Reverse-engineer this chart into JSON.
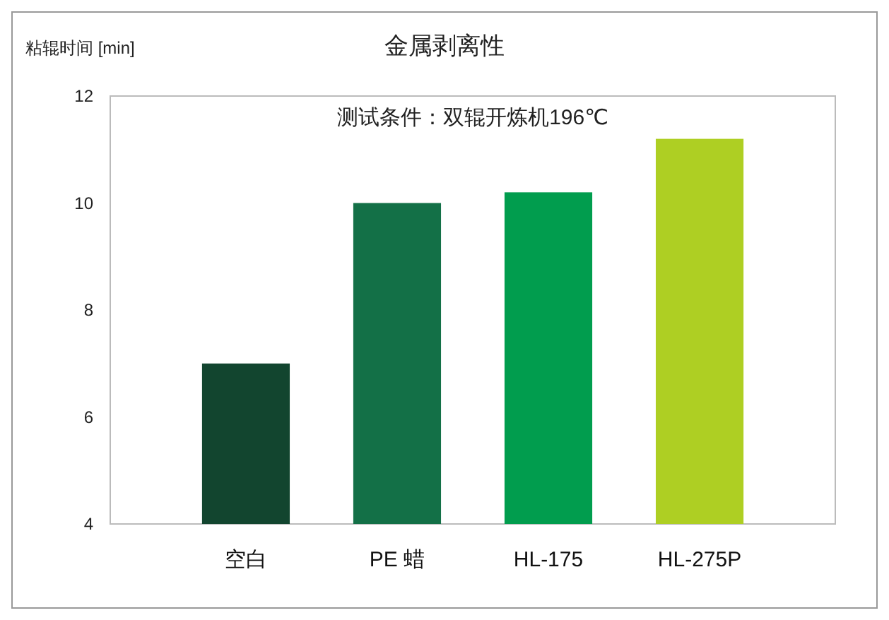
{
  "chart_data": {
    "type": "bar",
    "title": "金属剥离性",
    "ylabel": "粘辊时间 [min]",
    "categories": [
      "空白",
      "PE 蜡",
      "HL-175",
      "HL-275P"
    ],
    "values": [
      7.0,
      10.0,
      10.2,
      11.2
    ],
    "colors": [
      "#12452f",
      "#137047",
      "#019d4e",
      "#aecf23"
    ],
    "ylim": [
      4,
      12
    ],
    "yticks": [
      4,
      6,
      8,
      10,
      12
    ],
    "grid": false,
    "annotations": [
      "测试条件：双辊开炼机196℃"
    ]
  }
}
